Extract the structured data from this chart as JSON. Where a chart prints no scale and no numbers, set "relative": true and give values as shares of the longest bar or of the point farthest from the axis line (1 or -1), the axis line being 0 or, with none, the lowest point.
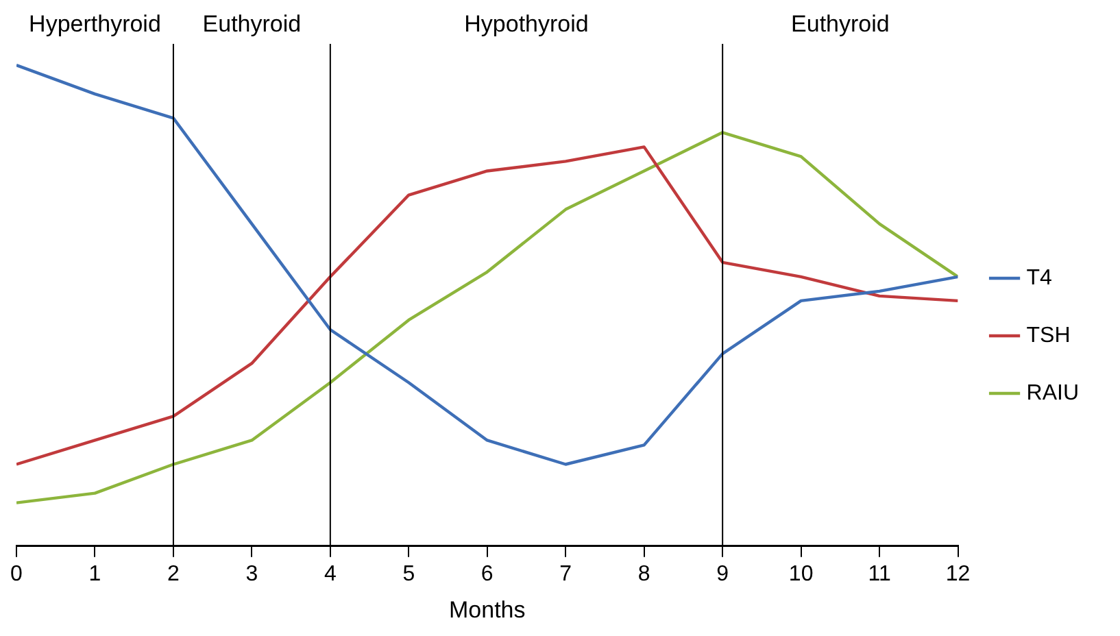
{
  "chart_data": {
    "type": "line",
    "xlabel": "Months",
    "x": [
      0,
      1,
      2,
      3,
      4,
      5,
      6,
      7,
      8,
      9,
      10,
      11,
      12
    ],
    "xlim": [
      0,
      12
    ],
    "xticks": [
      0,
      1,
      2,
      3,
      4,
      5,
      6,
      7,
      8,
      9,
      10,
      11,
      12
    ],
    "relative": true,
    "grid": false,
    "legend": "right",
    "marker": "none",
    "line_style": "solid",
    "series": [
      {
        "name": "T4",
        "color": "#3e6fb7",
        "values": [
          1,
          0.94,
          0.89,
          0.67,
          0.45,
          0.34,
          0.22,
          0.17,
          0.21,
          0.4,
          0.51,
          0.53,
          0.56
        ]
      },
      {
        "name": "TSH",
        "color": "#c13a3c",
        "values": [
          0.17,
          0.22,
          0.27,
          0.38,
          0.56,
          0.73,
          0.78,
          0.8,
          0.83,
          0.59,
          0.56,
          0.52,
          0.51
        ]
      },
      {
        "name": "RAIU",
        "color": "#8db53c",
        "values": [
          0.09,
          0.11,
          0.17,
          0.22,
          0.34,
          0.47,
          0.57,
          0.7,
          0.78,
          0.86,
          0.81,
          0.67,
          0.56
        ]
      }
    ],
    "ref_lines": [
      {
        "axis": "x",
        "value": 2,
        "color": "#000000"
      },
      {
        "axis": "x",
        "value": 4,
        "color": "#000000"
      },
      {
        "axis": "x",
        "value": 9,
        "color": "#000000"
      }
    ],
    "annotations": [
      "Hyperthyroid",
      "Euthyroid",
      "Hypothyroid",
      "Euthyroid"
    ]
  }
}
